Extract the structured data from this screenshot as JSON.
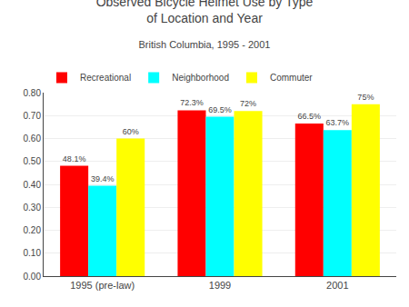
{
  "chart_data": {
    "type": "bar",
    "title": "Observed Bicycle Helmet Use by Type\nof Location and Year",
    "subtitle": "British Columbia, 1995 - 2001",
    "categories": [
      "1995 (pre-law)",
      "1999",
      "2001"
    ],
    "series": [
      {
        "name": "Recreational",
        "color": "#FF0000",
        "values": [
          0.481,
          0.723,
          0.665
        ],
        "value_labels": [
          "48.1%",
          "72.3%",
          "66.5%"
        ]
      },
      {
        "name": "Neighborhood",
        "color": "#00FFFF",
        "values": [
          0.394,
          0.695,
          0.637
        ],
        "value_labels": [
          "39.4%",
          "69.5%",
          "63.7%"
        ]
      },
      {
        "name": "Commuter",
        "color": "#FFFF00",
        "values": [
          0.6,
          0.72,
          0.75
        ],
        "value_labels": [
          "60%",
          "72%",
          "75%"
        ]
      }
    ],
    "ylim": [
      0.0,
      0.8
    ],
    "yticks": [
      {
        "value": 0.0,
        "label": "0.00"
      },
      {
        "value": 0.1,
        "label": "0.10"
      },
      {
        "value": 0.2,
        "label": "0.20"
      },
      {
        "value": 0.3,
        "label": "0.30"
      },
      {
        "value": 0.4,
        "label": "0.40"
      },
      {
        "value": 0.5,
        "label": "0.50"
      },
      {
        "value": 0.6,
        "label": "0.60"
      },
      {
        "value": 0.7,
        "label": "0.70"
      },
      {
        "value": 0.8,
        "label": "0.80"
      }
    ],
    "grid": true,
    "legend": "upper left",
    "data_labels": true
  }
}
